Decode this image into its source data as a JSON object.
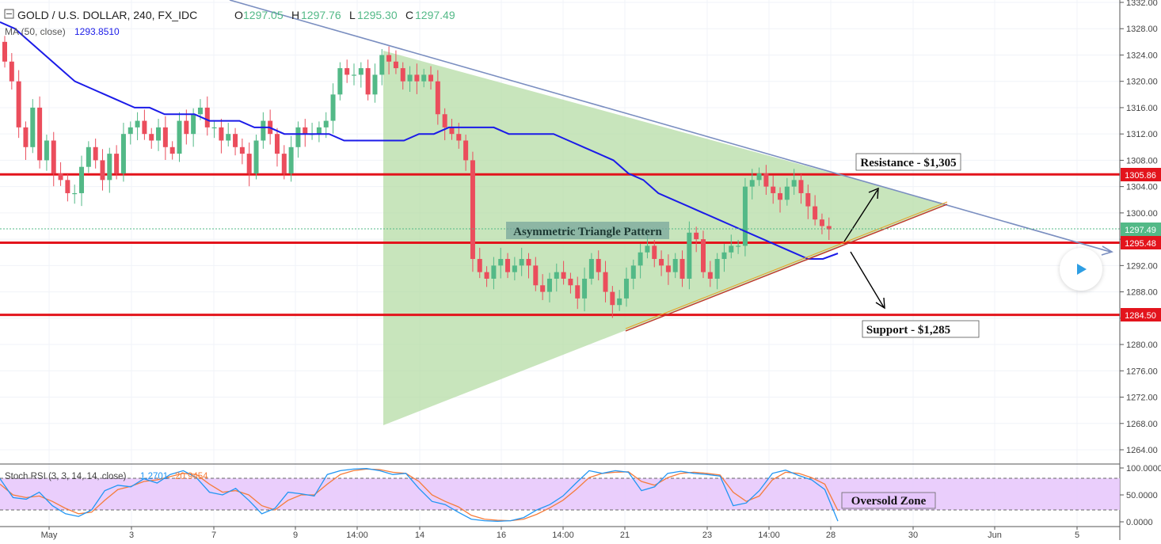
{
  "header": {
    "symbol": "GOLD / U.S. DOLLAR, 240, FX_IDC",
    "o_label": "O",
    "o_value": "1297.05",
    "h_label": "H",
    "h_value": "1297.76",
    "l_label": "L",
    "l_value": "1295.30",
    "c_label": "C",
    "c_value": "1297.49"
  },
  "ma": {
    "label": "MA (50, close)",
    "value": "1293.8510"
  },
  "stoch": {
    "label": "Stoch RSI (3, 3, 14, 14, close)",
    "k_value": "1.2701",
    "d_value": "20.9454"
  },
  "annotations": {
    "resistance": "Resistance - $1,305",
    "support": "Support - $1,285",
    "pattern": "Asymmetric Triangle Pattern",
    "oversold": "Oversold Zone"
  },
  "price_badges": {
    "resistance": "1305.86",
    "current": "1297.49",
    "middle": "1295.48",
    "support": "1284.50"
  },
  "colors": {
    "up": "#53b987",
    "down": "#eb4d5c",
    "ma": "#1b1be8",
    "level": "#e3141c",
    "triangle_fill": "#b5dca5",
    "stoch_k": "#2196f3",
    "stoch_d": "#f57c3b",
    "stoch_band": "#e6c6fb",
    "trendline": "#7a8ec0"
  },
  "chart_data": {
    "type": "candlestick",
    "ylim": [
      1262,
      1332
    ],
    "y_ticks": [
      "1332.00",
      "1328.00",
      "1324.00",
      "1320.00",
      "1316.00",
      "1312.00",
      "1308.00",
      "1304.00",
      "1300.00",
      "1296.00",
      "1292.00",
      "1288.00",
      "1284.00",
      "1280.00",
      "1276.00",
      "1272.00",
      "1268.00",
      "1264.00"
    ],
    "x_ticks": [
      "May",
      "3",
      "7",
      "9",
      "14:00",
      "14",
      "16",
      "14:00",
      "21",
      "23",
      "14:00",
      "28",
      "30",
      "Jun",
      "5"
    ],
    "horizontal_levels": [
      1305.86,
      1295.48,
      1284.5
    ],
    "close_series": [
      1323,
      1320,
      1313,
      1310,
      1316,
      1308,
      1311,
      1306,
      1305,
      1303,
      1303,
      1307,
      1310,
      1308,
      1305,
      1309,
      1306,
      1312,
      1313,
      1314,
      1312,
      1311,
      1313,
      1310,
      1309,
      1314,
      1312,
      1315,
      1316,
      1313,
      1313,
      1311,
      1312,
      1310,
      1309,
      1306,
      1311,
      1314,
      1312,
      1309,
      1306,
      1310,
      1313,
      1312,
      1312,
      1313,
      1314,
      1318,
      1322,
      1321,
      1321,
      1322,
      1318,
      1321,
      1324,
      1323,
      1322,
      1320,
      1321,
      1320,
      1321,
      1320,
      1315,
      1313,
      1312,
      1311,
      1308,
      1293,
      1291,
      1290,
      1292,
      1293,
      1291,
      1292,
      1293,
      1292,
      1289,
      1288,
      1290,
      1291,
      1290,
      1289,
      1287,
      1290,
      1293,
      1291,
      1288,
      1286,
      1287,
      1290,
      1292,
      1294,
      1295,
      1293,
      1292,
      1291,
      1293,
      1290,
      1297,
      1296,
      1291,
      1290,
      1293,
      1294,
      1295,
      1295,
      1304,
      1305,
      1306,
      1304,
      1303,
      1302,
      1304,
      1305,
      1303,
      1301,
      1299,
      1298,
      1297.49
    ],
    "ma50_series": [
      1329,
      1328,
      1326,
      1324,
      1322,
      1320,
      1319,
      1318,
      1317,
      1316,
      1316,
      1315,
      1315,
      1315,
      1314,
      1314,
      1314,
      1313,
      1313,
      1312,
      1312,
      1312,
      1312,
      1311,
      1311,
      1311,
      1311,
      1311,
      1312,
      1312,
      1313,
      1313,
      1313,
      1313,
      1312,
      1312,
      1312,
      1312,
      1311,
      1310,
      1309,
      1308,
      1306,
      1305,
      1303,
      1302,
      1301,
      1300,
      1299,
      1298,
      1297,
      1296,
      1295,
      1294,
      1293,
      1293,
      1293.85
    ],
    "stoch_rsi_k": [
      80,
      45,
      42,
      55,
      30,
      15,
      10,
      22,
      58,
      68,
      65,
      80,
      72,
      88,
      95,
      82,
      55,
      50,
      62,
      40,
      15,
      25,
      55,
      52,
      48,
      88,
      95,
      98,
      99,
      95,
      88,
      90,
      62,
      38,
      32,
      18,
      5,
      2,
      1,
      2,
      8,
      22,
      32,
      48,
      72,
      95,
      90,
      95,
      92,
      58,
      65,
      90,
      94,
      90,
      88,
      85,
      30,
      35,
      58,
      90,
      96,
      86,
      78,
      60,
      1.27
    ],
    "stoch_rsi_d": [
      70,
      50,
      45,
      48,
      38,
      25,
      15,
      18,
      40,
      60,
      66,
      75,
      78,
      84,
      90,
      88,
      70,
      55,
      58,
      50,
      30,
      22,
      40,
      50,
      50,
      70,
      88,
      95,
      98,
      97,
      92,
      90,
      75,
      50,
      38,
      28,
      12,
      5,
      3,
      2,
      5,
      14,
      26,
      40,
      60,
      82,
      90,
      92,
      93,
      75,
      68,
      82,
      90,
      92,
      90,
      87,
      55,
      38,
      48,
      78,
      92,
      90,
      82,
      70,
      20.95
    ],
    "stoch_ylim": [
      0,
      100
    ],
    "stoch_ticks": [
      "100.0000",
      "50.0000",
      "0.0000"
    ]
  }
}
